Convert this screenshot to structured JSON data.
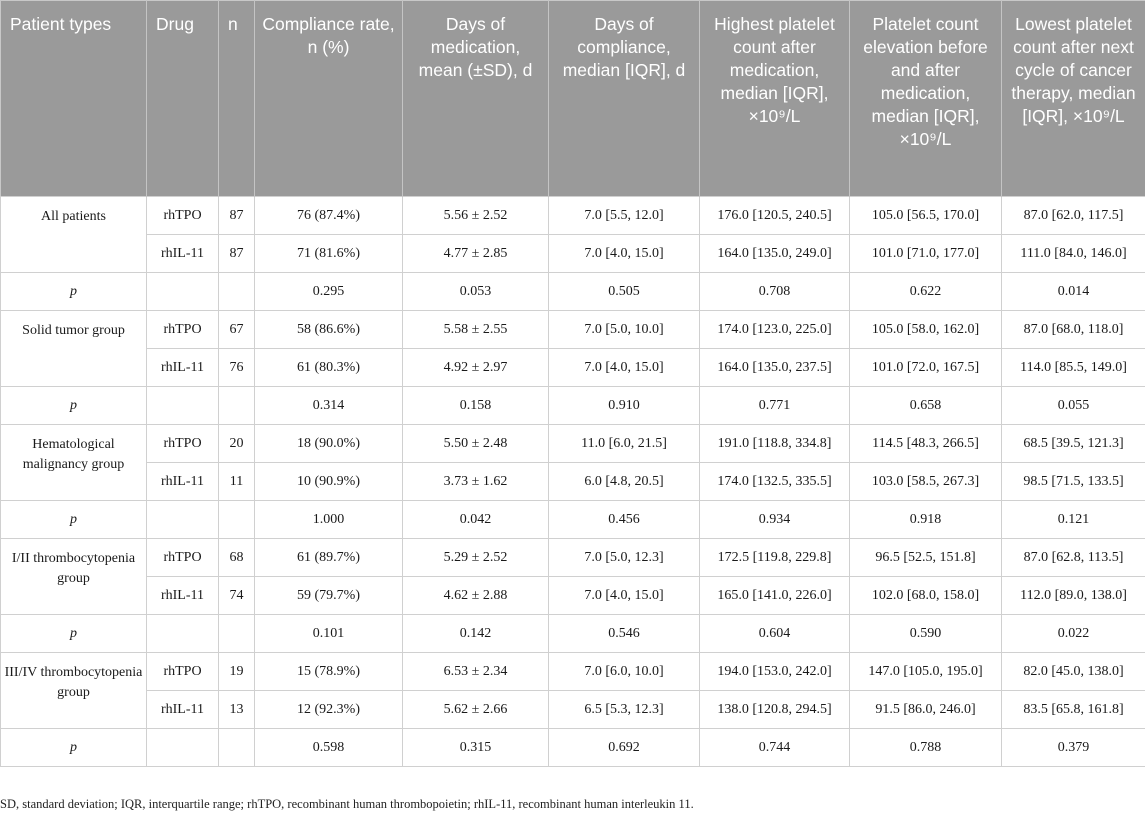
{
  "headers": [
    "Patient types",
    "Drug",
    "n",
    "Compliance rate, n (%)",
    "Days of medication, mean (±SD), d",
    "Days of compliance, median [IQR], d",
    "Highest platelet count after medication, median [IQR], ×10⁹/L",
    "Platelet count elevation before and after medication, median [IQR], ×10⁹/L",
    "Lowest platelet count after next cycle of cancer therapy, median [IQR], ×10⁹/L"
  ],
  "groups": [
    {
      "name": "All patients",
      "rows": [
        [
          "rhTPO",
          "87",
          "76 (87.4%)",
          "5.56 ± 2.52",
          "7.0 [5.5, 12.0]",
          "176.0 [120.5, 240.5]",
          "105.0 [56.5, 170.0]",
          "87.0 [62.0, 117.5]"
        ],
        [
          "rhIL-11",
          "87",
          "71 (81.6%)",
          "4.77 ± 2.85",
          "7.0 [4.0, 15.0]",
          "164.0 [135.0, 249.0]",
          "101.0 [71.0, 177.0]",
          "111.0 [84.0, 146.0]"
        ]
      ],
      "p": [
        "p",
        "",
        "",
        "0.295",
        "0.053",
        "0.505",
        "0.708",
        "0.622",
        "0.014"
      ]
    },
    {
      "name": "Solid tumor group",
      "rows": [
        [
          "rhTPO",
          "67",
          "58 (86.6%)",
          "5.58 ± 2.55",
          "7.0 [5.0, 10.0]",
          "174.0 [123.0, 225.0]",
          "105.0 [58.0, 162.0]",
          "87.0 [68.0, 118.0]"
        ],
        [
          "rhIL-11",
          "76",
          "61 (80.3%)",
          "4.92 ± 2.97",
          "7.0 [4.0, 15.0]",
          "164.0 [135.0, 237.5]",
          "101.0 [72.0, 167.5]",
          "114.0 [85.5, 149.0]"
        ]
      ],
      "p": [
        "p",
        "",
        "",
        "0.314",
        "0.158",
        "0.910",
        "0.771",
        "0.658",
        "0.055"
      ]
    },
    {
      "name": "Hematological malignancy group",
      "rows": [
        [
          "rhTPO",
          "20",
          "18 (90.0%)",
          "5.50 ± 2.48",
          "11.0 [6.0, 21.5]",
          "191.0 [118.8, 334.8]",
          "114.5 [48.3, 266.5]",
          "68.5 [39.5, 121.3]"
        ],
        [
          "rhIL-11",
          "11",
          "10 (90.9%)",
          "3.73 ± 1.62",
          "6.0 [4.8, 20.5]",
          "174.0 [132.5, 335.5]",
          "103.0 [58.5, 267.3]",
          "98.5 [71.5, 133.5]"
        ]
      ],
      "p": [
        "p",
        "",
        "",
        "1.000",
        "0.042",
        "0.456",
        "0.934",
        "0.918",
        "0.121"
      ]
    },
    {
      "name": "I/II thrombocytopenia group",
      "rows": [
        [
          "rhTPO",
          "68",
          "61 (89.7%)",
          "5.29 ± 2.52",
          "7.0 [5.0, 12.3]",
          "172.5 [119.8, 229.8]",
          "96.5 [52.5, 151.8]",
          "87.0 [62.8, 113.5]"
        ],
        [
          "rhIL-11",
          "74",
          "59 (79.7%)",
          "4.62 ± 2.88",
          "7.0 [4.0, 15.0]",
          "165.0 [141.0, 226.0]",
          "102.0 [68.0, 158.0]",
          "112.0 [89.0, 138.0]"
        ]
      ],
      "p": [
        "p",
        "",
        "",
        "0.101",
        "0.142",
        "0.546",
        "0.604",
        "0.590",
        "0.022"
      ]
    },
    {
      "name": "III/IV thrombocytopenia group",
      "rows": [
        [
          "rhTPO",
          "19",
          "15 (78.9%)",
          "6.53 ± 2.34",
          "7.0 [6.0, 10.0]",
          "194.0 [153.0, 242.0]",
          "147.0 [105.0, 195.0]",
          "82.0 [45.0, 138.0]"
        ],
        [
          "rhIL-11",
          "13",
          "12 (92.3%)",
          "5.62 ± 2.66",
          "6.5 [5.3, 12.3]",
          "138.0 [120.8, 294.5]",
          "91.5 [86.0, 246.0]",
          "83.5 [65.8, 161.8]"
        ]
      ],
      "p": [
        "p",
        "",
        "",
        "0.598",
        "0.315",
        "0.692",
        "0.744",
        "0.788",
        "0.379"
      ]
    }
  ],
  "footnote": "SD, standard deviation; IQR, interquartile range; rhTPO, recombinant human thrombopoietin; rhIL-11, recombinant human interleukin 11."
}
